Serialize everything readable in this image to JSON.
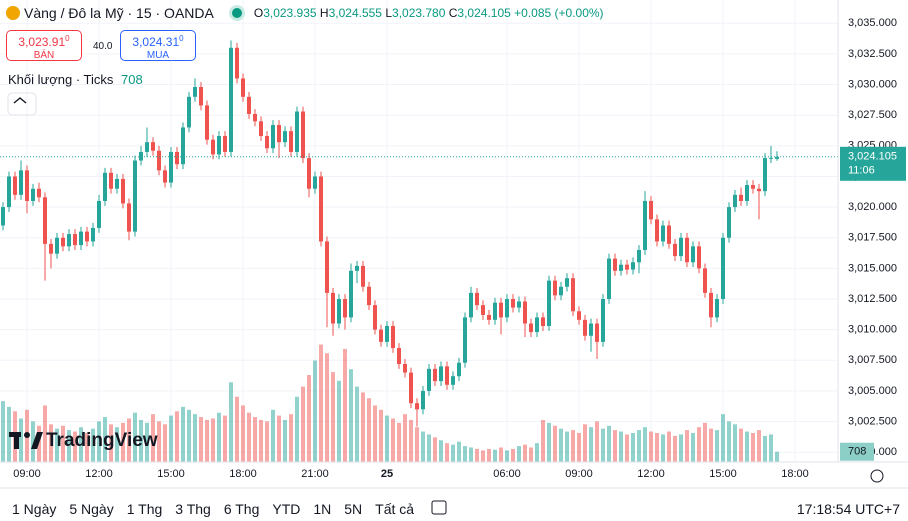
{
  "header": {
    "symbol": "Vàng / Đô la Mỹ · 15 · OANDA",
    "o": "O",
    "open": "3,023.935",
    "h": "H",
    "high": "3,024.555",
    "l": "L",
    "low": "3,023.780",
    "c": "C",
    "close": "3,024.105",
    "change": "+0.085 (+0.00%)"
  },
  "trade": {
    "sell_price": "3,023.91",
    "sell_sup": "0",
    "sell_label": "BÁN",
    "spread": "40.0",
    "buy_price": "3,024.31",
    "buy_sup": "0",
    "buy_label": "MUA"
  },
  "indicator": {
    "name": "Khối lượng · Ticks"
  },
  "chart_data": {
    "type": "candlestick",
    "ohlc": [
      [
        3018.5,
        3020.4,
        3018.1,
        3020.0
      ],
      [
        3020.0,
        3022.9,
        3019.6,
        3022.5
      ],
      [
        3022.5,
        3022.9,
        3020.6,
        3021.0
      ],
      [
        3021.0,
        3023.8,
        3020.6,
        3023.0
      ],
      [
        3023.0,
        3023.4,
        3019.5,
        3020.5
      ],
      [
        3020.5,
        3021.9,
        3020.1,
        3021.5
      ],
      [
        3021.5,
        3022.0,
        3020.4,
        3020.8
      ],
      [
        3020.8,
        3021.2,
        3014.0,
        3017.0
      ],
      [
        3017.0,
        3017.4,
        3015.0,
        3016.2
      ],
      [
        3016.2,
        3017.9,
        3015.8,
        3017.5
      ],
      [
        3017.5,
        3017.9,
        3016.4,
        3016.8
      ],
      [
        3016.8,
        3018.2,
        3016.4,
        3017.8
      ],
      [
        3017.8,
        3018.2,
        3016.5,
        3016.9
      ],
      [
        3016.9,
        3018.4,
        3016.5,
        3018.0
      ],
      [
        3018.0,
        3018.4,
        3016.8,
        3017.2
      ],
      [
        3017.2,
        3018.7,
        3016.8,
        3018.3
      ],
      [
        3018.3,
        3021.0,
        3017.9,
        3020.5
      ],
      [
        3020.5,
        3023.2,
        3020.1,
        3022.8
      ],
      [
        3022.8,
        3023.2,
        3021.1,
        3021.5
      ],
      [
        3021.5,
        3022.7,
        3021.1,
        3022.3
      ],
      [
        3022.3,
        3022.7,
        3019.9,
        3020.3
      ],
      [
        3020.3,
        3020.7,
        3017.3,
        3018.0
      ],
      [
        3018.0,
        3024.2,
        3017.6,
        3023.8
      ],
      [
        3023.8,
        3025.0,
        3023.4,
        3024.5
      ],
      [
        3024.5,
        3026.5,
        3024.1,
        3025.3
      ],
      [
        3025.3,
        3025.7,
        3024.2,
        3024.6
      ],
      [
        3024.6,
        3025.0,
        3022.6,
        3023.0
      ],
      [
        3023.0,
        3023.4,
        3021.6,
        3022.0
      ],
      [
        3022.0,
        3024.9,
        3021.6,
        3024.5
      ],
      [
        3024.5,
        3024.9,
        3023.1,
        3023.5
      ],
      [
        3023.5,
        3026.9,
        3023.1,
        3026.5
      ],
      [
        3026.5,
        3029.4,
        3026.1,
        3029.0
      ],
      [
        3029.0,
        3030.5,
        3028.6,
        3029.8
      ],
      [
        3029.8,
        3030.2,
        3027.9,
        3028.3
      ],
      [
        3028.3,
        3028.7,
        3025.1,
        3025.5
      ],
      [
        3025.5,
        3025.9,
        3023.9,
        3024.3
      ],
      [
        3024.3,
        3026.2,
        3023.9,
        3025.8
      ],
      [
        3025.8,
        3026.2,
        3024.1,
        3024.5
      ],
      [
        3024.5,
        3033.6,
        3024.1,
        3033.0
      ],
      [
        3033.0,
        3033.4,
        3030.1,
        3030.5
      ],
      [
        3030.5,
        3030.9,
        3028.6,
        3029.0
      ],
      [
        3029.0,
        3029.4,
        3027.2,
        3027.6
      ],
      [
        3027.6,
        3028.0,
        3026.6,
        3027.0
      ],
      [
        3027.0,
        3027.4,
        3025.4,
        3025.8
      ],
      [
        3025.8,
        3026.2,
        3024.4,
        3024.8
      ],
      [
        3024.8,
        3027.1,
        3024.4,
        3026.7
      ],
      [
        3026.7,
        3027.1,
        3024.0,
        3025.3
      ],
      [
        3025.3,
        3026.6,
        3024.9,
        3026.2
      ],
      [
        3026.2,
        3026.6,
        3024.1,
        3024.5
      ],
      [
        3024.5,
        3028.2,
        3024.1,
        3027.8
      ],
      [
        3027.8,
        3028.2,
        3023.6,
        3024.0
      ],
      [
        3024.0,
        3024.4,
        3020.8,
        3021.5
      ],
      [
        3021.5,
        3022.9,
        3021.1,
        3022.5
      ],
      [
        3022.5,
        3022.9,
        3016.8,
        3017.2
      ],
      [
        3017.2,
        3017.6,
        3010.2,
        3013.0
      ],
      [
        3013.0,
        3013.4,
        3009.5,
        3010.5
      ],
      [
        3010.5,
        3012.9,
        3010.1,
        3012.5
      ],
      [
        3012.5,
        3012.9,
        3010.0,
        3011.0
      ],
      [
        3011.0,
        3015.4,
        3010.6,
        3014.8
      ],
      [
        3014.8,
        3015.6,
        3013.8,
        3015.2
      ],
      [
        3015.2,
        3015.6,
        3013.1,
        3013.5
      ],
      [
        3013.5,
        3013.9,
        3011.6,
        3012.0
      ],
      [
        3012.0,
        3012.4,
        3009.6,
        3010.0
      ],
      [
        3010.0,
        3010.4,
        3008.6,
        3009.0
      ],
      [
        3009.0,
        3010.7,
        3008.6,
        3010.3
      ],
      [
        3010.3,
        3010.7,
        3008.1,
        3008.5
      ],
      [
        3008.5,
        3008.9,
        3006.8,
        3007.2
      ],
      [
        3007.2,
        3007.6,
        3006.1,
        3006.5
      ],
      [
        3006.5,
        3006.9,
        3003.6,
        3004.0
      ],
      [
        3004.0,
        3004.4,
        3002.1,
        3003.5
      ],
      [
        3003.5,
        3005.4,
        3003.1,
        3005.0
      ],
      [
        3005.0,
        3007.2,
        3004.6,
        3006.8
      ],
      [
        3006.8,
        3007.2,
        3005.4,
        3005.8
      ],
      [
        3005.8,
        3007.4,
        3005.4,
        3007.0
      ],
      [
        3007.0,
        3007.4,
        3005.1,
        3005.5
      ],
      [
        3005.5,
        3006.6,
        3005.1,
        3006.2
      ],
      [
        3006.2,
        3007.7,
        3005.8,
        3007.3
      ],
      [
        3007.3,
        3011.4,
        3006.9,
        3011.0
      ],
      [
        3011.0,
        3013.5,
        3010.6,
        3013.0
      ],
      [
        3013.0,
        3013.4,
        3011.6,
        3012.0
      ],
      [
        3012.0,
        3012.4,
        3010.8,
        3011.2
      ],
      [
        3011.2,
        3011.6,
        3010.4,
        3010.8
      ],
      [
        3010.8,
        3012.6,
        3010.4,
        3012.2
      ],
      [
        3012.2,
        3012.6,
        3009.6,
        3011.0
      ],
      [
        3011.0,
        3012.9,
        3010.6,
        3012.5
      ],
      [
        3012.5,
        3012.9,
        3011.4,
        3011.8
      ],
      [
        3011.8,
        3012.7,
        3011.4,
        3012.3
      ],
      [
        3012.3,
        3012.7,
        3009.4,
        3010.5
      ],
      [
        3010.5,
        3010.9,
        3009.4,
        3009.8
      ],
      [
        3009.8,
        3011.4,
        3009.4,
        3011.0
      ],
      [
        3011.0,
        3011.4,
        3009.9,
        3010.3
      ],
      [
        3010.3,
        3014.4,
        3009.9,
        3014.0
      ],
      [
        3014.0,
        3014.4,
        3012.4,
        3012.8
      ],
      [
        3012.8,
        3013.9,
        3012.4,
        3013.5
      ],
      [
        3013.5,
        3014.6,
        3013.1,
        3014.2
      ],
      [
        3014.2,
        3014.6,
        3011.1,
        3011.5
      ],
      [
        3011.5,
        3011.9,
        3010.4,
        3010.8
      ],
      [
        3010.8,
        3011.2,
        3009.1,
        3009.5
      ],
      [
        3009.5,
        3010.9,
        3008.2,
        3010.5
      ],
      [
        3010.5,
        3010.9,
        3007.6,
        3009.0
      ],
      [
        3009.0,
        3012.9,
        3008.6,
        3012.5
      ],
      [
        3012.5,
        3016.2,
        3012.1,
        3015.8
      ],
      [
        3015.8,
        3016.2,
        3014.4,
        3014.8
      ],
      [
        3014.8,
        3015.7,
        3014.4,
        3015.3
      ],
      [
        3015.3,
        3015.7,
        3014.5,
        3014.9
      ],
      [
        3014.9,
        3015.9,
        3014.5,
        3015.5
      ],
      [
        3015.5,
        3016.9,
        3014.6,
        3016.5
      ],
      [
        3016.5,
        3021.3,
        3016.1,
        3020.5
      ],
      [
        3020.5,
        3020.9,
        3018.6,
        3019.0
      ],
      [
        3019.0,
        3019.4,
        3016.8,
        3017.2
      ],
      [
        3017.2,
        3018.9,
        3016.8,
        3018.5
      ],
      [
        3018.5,
        3018.9,
        3016.6,
        3017.0
      ],
      [
        3017.0,
        3017.4,
        3015.6,
        3016.0
      ],
      [
        3016.0,
        3017.9,
        3015.6,
        3017.5
      ],
      [
        3017.5,
        3017.9,
        3015.1,
        3015.5
      ],
      [
        3015.5,
        3017.2,
        3015.1,
        3016.8
      ],
      [
        3016.8,
        3017.2,
        3014.6,
        3015.0
      ],
      [
        3015.0,
        3015.4,
        3012.6,
        3013.0
      ],
      [
        3013.0,
        3013.4,
        3010.2,
        3011.0
      ],
      [
        3011.0,
        3012.9,
        3010.6,
        3012.5
      ],
      [
        3012.5,
        3017.9,
        3012.1,
        3017.5
      ],
      [
        3017.5,
        3020.4,
        3017.1,
        3020.0
      ],
      [
        3020.0,
        3021.4,
        3019.6,
        3021.0
      ],
      [
        3021.0,
        3021.6,
        3020.1,
        3020.5
      ],
      [
        3020.5,
        3022.2,
        3020.1,
        3021.8
      ],
      [
        3021.8,
        3022.2,
        3021.1,
        3021.5
      ],
      [
        3021.5,
        3021.9,
        3019.0,
        3021.3
      ],
      [
        3021.3,
        3024.4,
        3020.9,
        3024.0
      ],
      [
        3024.0,
        3025.0,
        3023.6,
        3024.02
      ],
      [
        3023.935,
        3024.555,
        3023.78,
        3024.105
      ]
    ],
    "volume": [
      4200,
      3800,
      3500,
      3000,
      3600,
      2800,
      2500,
      3900,
      2600,
      2300,
      2500,
      2200,
      2100,
      2400,
      2000,
      2300,
      2800,
      3100,
      2600,
      2400,
      2700,
      3000,
      3400,
      2900,
      2700,
      3300,
      2800,
      2600,
      3200,
      3500,
      3800,
      3600,
      3300,
      3100,
      2900,
      3000,
      3400,
      3200,
      5500,
      4500,
      3900,
      3400,
      3100,
      2900,
      2800,
      3600,
      3200,
      2900,
      3300,
      4500,
      5200,
      6000,
      7000,
      8100,
      7500,
      6200,
      5600,
      7800,
      6400,
      5200,
      4800,
      4400,
      3900,
      3600,
      3200,
      3000,
      2700,
      3300,
      2900,
      2400,
      2100,
      1900,
      1700,
      1500,
      1300,
      1200,
      1400,
      1100,
      1000,
      900,
      800,
      900,
      850,
      1000,
      800,
      900,
      1100,
      1200,
      1000,
      1300,
      2900,
      2700,
      2500,
      2300,
      2100,
      2200,
      2000,
      2600,
      2400,
      2800,
      2300,
      2500,
      2200,
      2100,
      1900,
      2000,
      2200,
      2400,
      2100,
      2000,
      1900,
      2100,
      1800,
      1900,
      2200,
      2000,
      2400,
      2700,
      2300,
      2200,
      3300,
      2800,
      2600,
      2300,
      2100,
      2000,
      2200,
      1800,
      1900,
      708
    ],
    "up_color": "#26a69a",
    "down_color": "#ef5350",
    "ylim": [
      2999.2,
      3036.9
    ],
    "yticks": [
      {
        "value": 3000,
        "label": "3,000.000"
      },
      {
        "value": 3002.5,
        "label": "3,002.500"
      },
      {
        "value": 3005,
        "label": "3,005.000"
      },
      {
        "value": 3007.5,
        "label": "3,007.500"
      },
      {
        "value": 3010,
        "label": "3,010.000"
      },
      {
        "value": 3012.5,
        "label": "3,012.500"
      },
      {
        "value": 3015,
        "label": "3,015.000"
      },
      {
        "value": 3017.5,
        "label": "3,017.500"
      },
      {
        "value": 3020,
        "label": "3,020.000"
      },
      {
        "value": 3022.5,
        "label": "3,022.500"
      },
      {
        "value": 3025,
        "label": "3,025.000"
      },
      {
        "value": 3027.5,
        "label": "3,027.500"
      },
      {
        "value": 3030,
        "label": "3,030.000"
      },
      {
        "value": 3032.5,
        "label": "3,032.500"
      },
      {
        "value": 3035,
        "label": "3,035.000"
      }
    ],
    "volume_ylim": [
      0,
      10000
    ],
    "xticks": [
      {
        "value": 4,
        "label": "09:00"
      },
      {
        "value": 16,
        "label": "12:00"
      },
      {
        "value": 28,
        "label": "15:00"
      },
      {
        "value": 40,
        "label": "18:00"
      },
      {
        "value": 52,
        "label": "21:00"
      },
      {
        "value": 64,
        "label": "25"
      },
      {
        "value": 84,
        "label": "06:00"
      },
      {
        "value": 96,
        "label": "09:00"
      },
      {
        "value": 108,
        "label": "12:00"
      },
      {
        "value": 120,
        "label": "15:00"
      },
      {
        "value": 132,
        "label": "18:00"
      }
    ],
    "last_label": "3,024.105",
    "countdown": "11:06",
    "grid": true
  },
  "logo": "TradingView",
  "ranges": [
    "1 Ngày",
    "5 Ngày",
    "1 Thg",
    "3 Thg",
    "6 Thg",
    "YTD",
    "1N",
    "5N",
    "Tất cả"
  ],
  "clock": "17:18:54 UTC+7"
}
